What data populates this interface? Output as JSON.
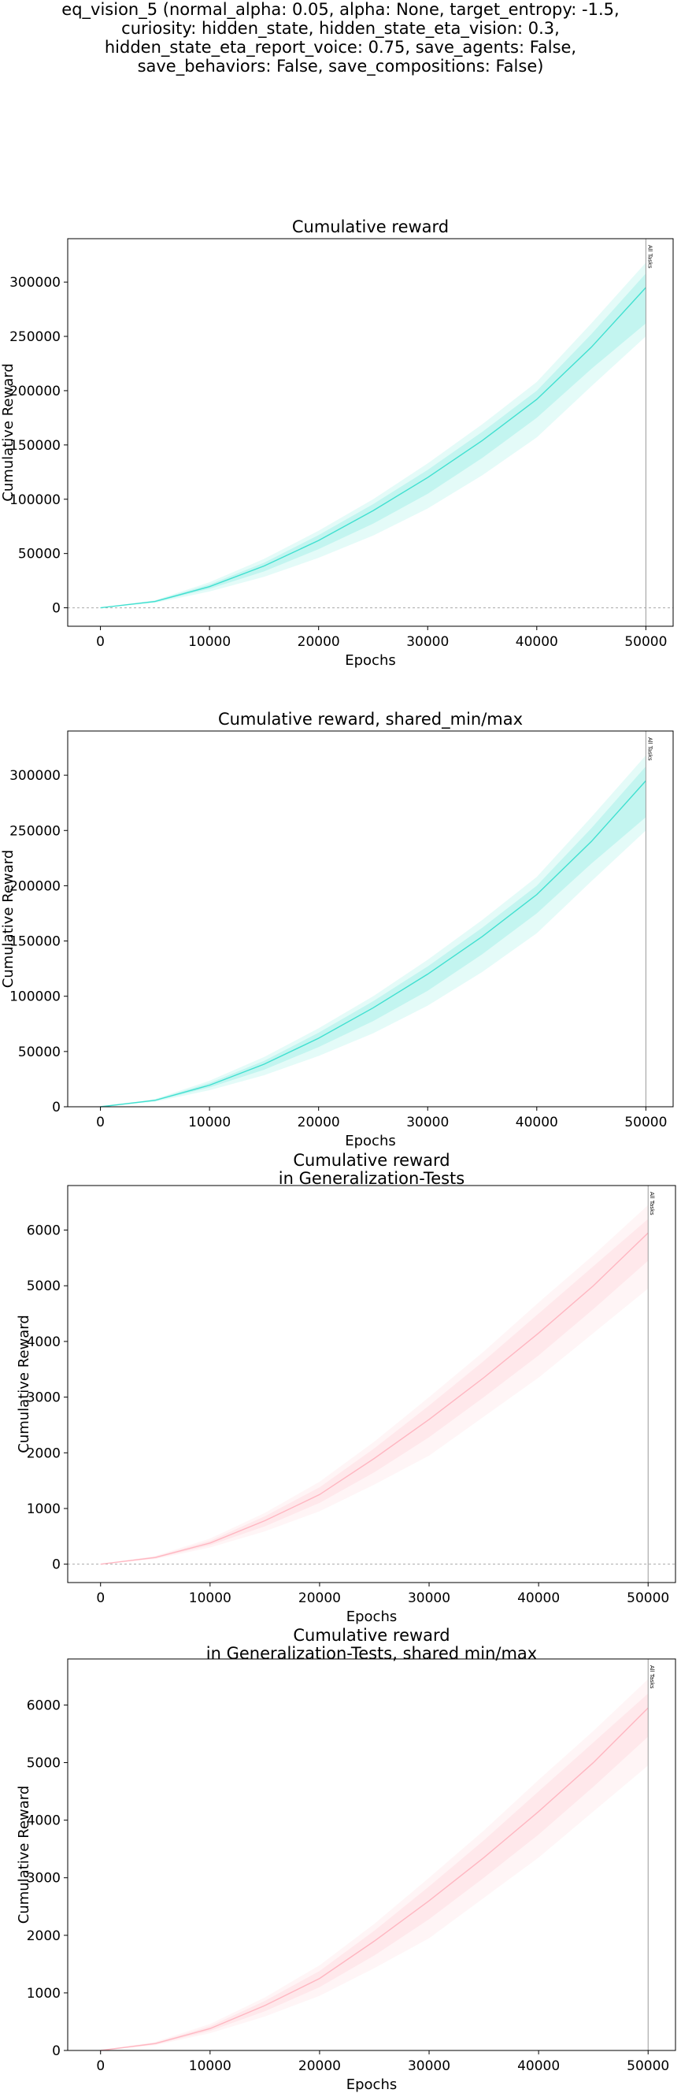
{
  "suptitle_lines": [
    "eq_vision_5 (normal_alpha: 0.05, alpha: None, target_entropy: -1.5,",
    "curiosity: hidden_state, hidden_state_eta_vision: 0.3,",
    "hidden_state_eta_report_voice: 0.75, save_agents: False,",
    "save_behaviors: False, save_compositions: False)"
  ],
  "chart_data": [
    {
      "type": "line",
      "title_lines": [
        "Cumulative reward"
      ],
      "xlabel": "Epochs",
      "ylabel": "Cumulative Reward",
      "xlim": [
        -3000,
        52500
      ],
      "ylim": [
        -17000,
        340000
      ],
      "xticks": [
        0,
        10000,
        20000,
        30000,
        40000,
        50000
      ],
      "xtick_labels": [
        "0",
        "10000",
        "20000",
        "30000",
        "40000",
        "50000"
      ],
      "yticks": [
        0,
        50000,
        100000,
        150000,
        200000,
        250000,
        300000
      ],
      "ytick_labels": [
        "0",
        "50000",
        "100000",
        "150000",
        "200000",
        "250000",
        "300000"
      ],
      "zero_line": true,
      "color": "#40e0d0",
      "x": [
        0,
        5000,
        10000,
        15000,
        20000,
        25000,
        30000,
        35000,
        40000,
        45000,
        50000
      ],
      "series": [
        {
          "values": [
            0,
            5800,
            19500,
            38500,
            62000,
            89500,
            120000,
            154000,
            192000,
            240000,
            295000
          ]
        }
      ],
      "band_outer": {
        "lower": [
          0,
          4500,
          15000,
          28500,
          46000,
          66500,
          91500,
          122000,
          157000,
          204000,
          250000
        ],
        "upper": [
          0,
          7000,
          23500,
          45000,
          71000,
          100000,
          133000,
          169000,
          208000,
          262000,
          318000
        ]
      },
      "band_inner": {
        "lower": [
          0,
          5200,
          17500,
          33500,
          54000,
          77500,
          105000,
          138000,
          175000,
          220000,
          262000
        ],
        "upper": [
          0,
          6500,
          21500,
          41500,
          67000,
          95500,
          127000,
          162000,
          200000,
          252000,
          308000
        ]
      },
      "vline": {
        "x": 50000,
        "label": "All Tasks"
      }
    },
    {
      "type": "line",
      "title_lines": [
        "Cumulative reward, shared_min/max"
      ],
      "xlabel": "Epochs",
      "ylabel": "Cumulative Reward",
      "xlim": [
        -3000,
        52500
      ],
      "ylim": [
        0,
        340000
      ],
      "xticks": [
        0,
        10000,
        20000,
        30000,
        40000,
        50000
      ],
      "xtick_labels": [
        "0",
        "10000",
        "20000",
        "30000",
        "40000",
        "50000"
      ],
      "yticks": [
        0,
        50000,
        100000,
        150000,
        200000,
        250000,
        300000
      ],
      "ytick_labels": [
        "0",
        "50000",
        "100000",
        "150000",
        "200000",
        "250000",
        "300000"
      ],
      "zero_line": false,
      "color": "#40e0d0",
      "x": [
        0,
        5000,
        10000,
        15000,
        20000,
        25000,
        30000,
        35000,
        40000,
        45000,
        50000
      ],
      "series": [
        {
          "values": [
            0,
            5800,
            19500,
            38500,
            62000,
            89500,
            120000,
            154000,
            192000,
            240000,
            295000
          ]
        }
      ],
      "band_outer": {
        "lower": [
          0,
          4500,
          15000,
          28500,
          46000,
          66500,
          91500,
          122000,
          157000,
          204000,
          250000
        ],
        "upper": [
          0,
          7000,
          23500,
          45000,
          71000,
          100000,
          133000,
          169000,
          208000,
          262000,
          318000
        ]
      },
      "band_inner": {
        "lower": [
          0,
          5200,
          17500,
          33500,
          54000,
          77500,
          105000,
          138000,
          175000,
          220000,
          262000
        ],
        "upper": [
          0,
          6500,
          21500,
          41500,
          67000,
          95500,
          127000,
          162000,
          200000,
          252000,
          308000
        ]
      },
      "vline": {
        "x": 50000,
        "label": "All Tasks"
      }
    },
    {
      "type": "line",
      "title_lines": [
        "Cumulative reward",
        "in Generalization-Tests"
      ],
      "xlabel": "Epochs",
      "ylabel": "Cumulative Reward",
      "xlim": [
        -3000,
        52500
      ],
      "ylim": [
        -330,
        6800
      ],
      "xticks": [
        0,
        10000,
        20000,
        30000,
        40000,
        50000
      ],
      "xtick_labels": [
        "0",
        "10000",
        "20000",
        "30000",
        "40000",
        "50000"
      ],
      "yticks": [
        0,
        1000,
        2000,
        3000,
        4000,
        5000,
        6000
      ],
      "ytick_labels": [
        "0",
        "1000",
        "2000",
        "3000",
        "4000",
        "5000",
        "6000"
      ],
      "zero_line": true,
      "color": "#ffb6c1",
      "x": [
        0,
        5000,
        10000,
        15000,
        20000,
        25000,
        30000,
        35000,
        40000,
        45000,
        50000
      ],
      "series": [
        {
          "values": [
            0,
            120,
            380,
            780,
            1250,
            1900,
            2600,
            3350,
            4150,
            5000,
            5950
          ]
        }
      ],
      "band_outer": {
        "lower": [
          0,
          90,
          300,
          590,
          950,
          1430,
          1950,
          2650,
          3350,
          4150,
          4950
        ],
        "upper": [
          0,
          150,
          460,
          920,
          1480,
          2200,
          3000,
          3820,
          4700,
          5550,
          6450
        ]
      },
      "band_inner": {
        "lower": [
          0,
          105,
          340,
          680,
          1100,
          1650,
          2280,
          3000,
          3750,
          4580,
          5450
        ],
        "upper": [
          0,
          135,
          420,
          860,
          1380,
          2080,
          2850,
          3650,
          4500,
          5350,
          6200
        ]
      },
      "vline": {
        "x": 50000,
        "label": "All Tasks"
      }
    },
    {
      "type": "line",
      "title_lines": [
        "Cumulative reward",
        "in Generalization-Tests, shared min/max"
      ],
      "xlabel": "Epochs",
      "ylabel": "Cumulative Reward",
      "xlim": [
        -3000,
        52500
      ],
      "ylim": [
        0,
        6800
      ],
      "xticks": [
        0,
        10000,
        20000,
        30000,
        40000,
        50000
      ],
      "xtick_labels": [
        "0",
        "10000",
        "20000",
        "30000",
        "40000",
        "50000"
      ],
      "yticks": [
        0,
        1000,
        2000,
        3000,
        4000,
        5000,
        6000
      ],
      "ytick_labels": [
        "0",
        "1000",
        "2000",
        "3000",
        "4000",
        "5000",
        "6000"
      ],
      "zero_line": false,
      "color": "#ffb6c1",
      "x": [
        0,
        5000,
        10000,
        15000,
        20000,
        25000,
        30000,
        35000,
        40000,
        45000,
        50000
      ],
      "series": [
        {
          "values": [
            0,
            120,
            380,
            780,
            1250,
            1900,
            2600,
            3350,
            4150,
            5000,
            5950
          ]
        }
      ],
      "band_outer": {
        "lower": [
          0,
          90,
          300,
          590,
          950,
          1430,
          1950,
          2650,
          3350,
          4150,
          4950
        ],
        "upper": [
          0,
          150,
          460,
          920,
          1480,
          2200,
          3000,
          3820,
          4700,
          5550,
          6450
        ]
      },
      "band_inner": {
        "lower": [
          0,
          105,
          340,
          680,
          1100,
          1650,
          2280,
          3000,
          3750,
          4580,
          5450
        ],
        "upper": [
          0,
          135,
          420,
          860,
          1380,
          2080,
          2850,
          3650,
          4500,
          5350,
          6200
        ]
      },
      "vline": {
        "x": 50000,
        "label": "All Tasks"
      }
    }
  ]
}
